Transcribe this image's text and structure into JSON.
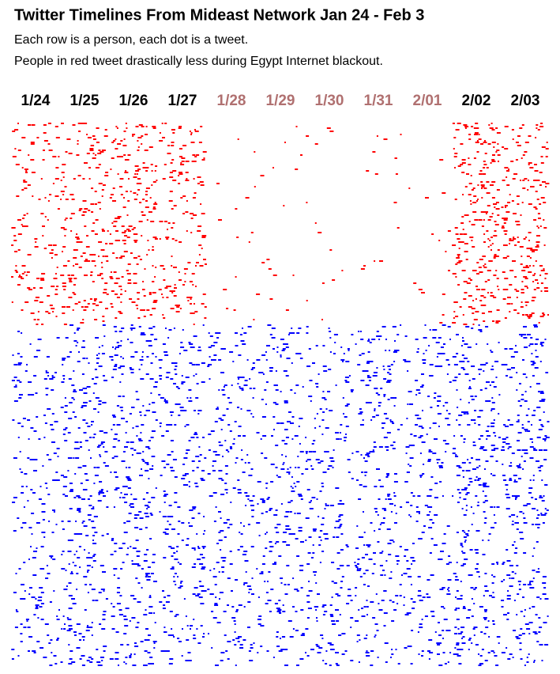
{
  "chart_data": {
    "type": "dot-timeline",
    "title": "Twitter Timelines From Mideast Network Jan 24 - Feb 3",
    "subtitle": [
      "Each row is a person, each dot is a tweet.",
      "People in red tweet drastically less during Egypt Internet blackout."
    ],
    "categories": [
      "1/24",
      "1/25",
      "1/26",
      "1/27",
      "1/28",
      "1/29",
      "1/30",
      "1/31",
      "2/01",
      "2/02",
      "2/03"
    ],
    "category_colors": [
      "#000000",
      "#000000",
      "#000000",
      "#000000",
      "#b07070",
      "#b07070",
      "#b07070",
      "#b07070",
      "#b07070",
      "#000000",
      "#000000"
    ],
    "series": [
      {
        "color": "#ff0000",
        "values": [
          0.5,
          0.7,
          0.8,
          0.6,
          0.06,
          0.06,
          0.05,
          0.06,
          0.06,
          0.9,
          0.8
        ]
      },
      {
        "color": "#0000ff",
        "values": [
          0.45,
          0.7,
          0.7,
          0.6,
          0.55,
          0.55,
          0.55,
          0.6,
          0.55,
          0.75,
          0.7
        ]
      }
    ]
  }
}
